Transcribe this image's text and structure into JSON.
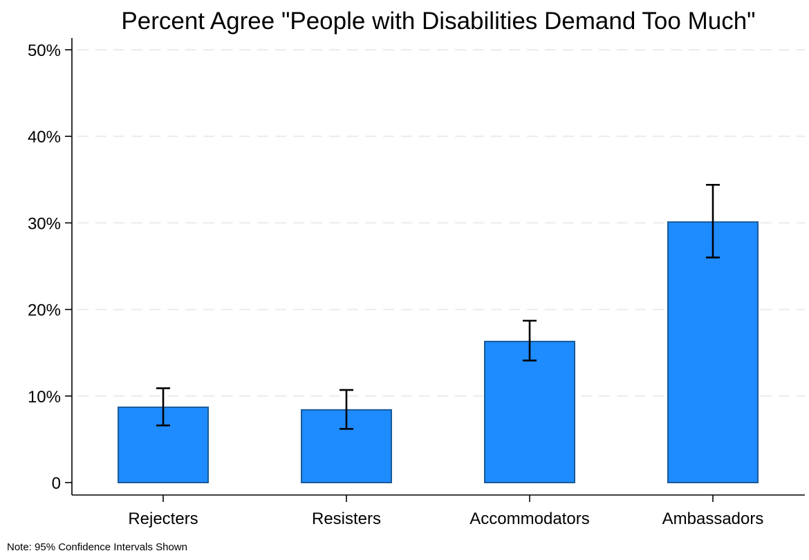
{
  "chart_data": {
    "type": "bar",
    "title": "Percent Agree \"People with Disabilities Demand Too Much\"",
    "xlabel": "",
    "ylabel": "",
    "categories": [
      "Rejecters",
      "Resisters",
      "Accommodators",
      "Ambassadors"
    ],
    "values": [
      8.7,
      8.4,
      16.3,
      30.1
    ],
    "ci_lower": [
      6.6,
      6.2,
      14.1,
      26.0
    ],
    "ci_upper": [
      10.9,
      10.7,
      18.7,
      34.4
    ],
    "units": "percent",
    "ylim": [
      0,
      50
    ],
    "yticks": [
      0,
      10,
      20,
      30,
      40,
      50
    ],
    "ytick_labels": [
      "0",
      "10%",
      "20%",
      "30%",
      "40%",
      "50%"
    ],
    "grid": true,
    "grid_style": "dashed horizontal",
    "legend": "none",
    "note": "Note: 95% Confidence Intervals Shown",
    "colors": {
      "bar_fill": "#1e8bff",
      "bar_edge": "#1a5a96",
      "error_bar": "#000000",
      "grid": "#ebebeb",
      "axis": "#000000"
    }
  }
}
